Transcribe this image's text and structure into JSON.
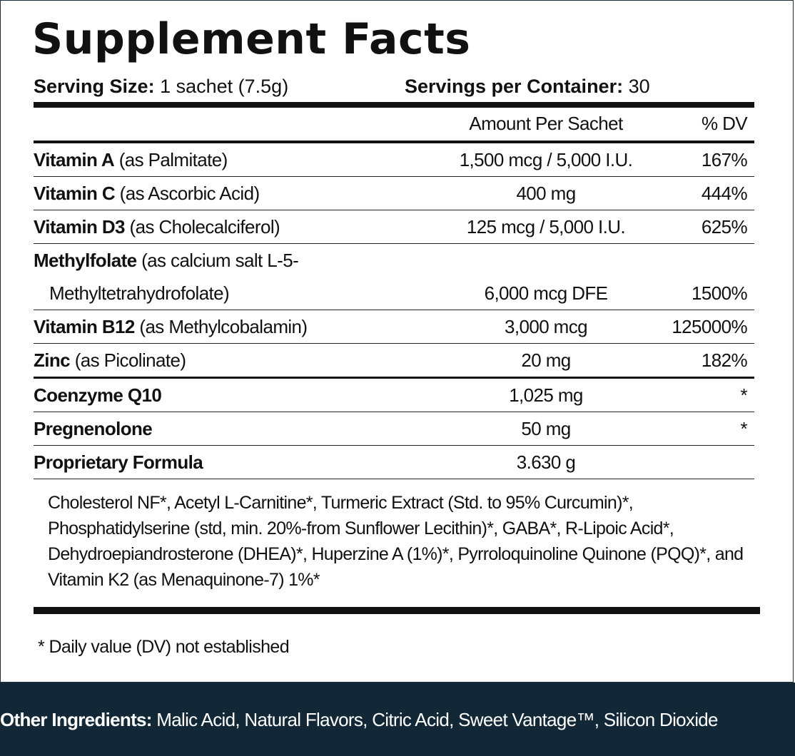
{
  "title": "Supplement Facts",
  "serving": {
    "size_label": "Serving Size:",
    "size_value": "1 sachet (7.5g)",
    "per_container_label": "Servings per Container:",
    "per_container_value": "30"
  },
  "table": {
    "amount_header": "Amount Per Sachet",
    "dv_header": "% DV",
    "rows": [
      {
        "name": "Vitamin A",
        "detail": "(as Palmitate)",
        "amount": "1,500 mcg / 5,000 I.U.",
        "dv": "167%"
      },
      {
        "name": "Vitamin C",
        "detail": "(as Ascorbic Acid)",
        "amount": "400 mg",
        "dv": "444%"
      },
      {
        "name": "Vitamin D3",
        "detail": "(as Cholecalciferol)",
        "amount": "125 mcg / 5,000 I.U.",
        "dv": "625%"
      },
      {
        "name": "Methylfolate",
        "detail": "(as calcium salt L-5-",
        "detail2": "Methyltetrahydrofolate)",
        "amount": "6,000 mcg DFE",
        "dv": "1500%"
      },
      {
        "name": "Vitamin B12",
        "detail": "(as Methylcobalamin)",
        "amount": "3,000 mcg",
        "dv": "125000%"
      },
      {
        "name": "Zinc",
        "detail": "(as Picolinate)",
        "amount": "20 mg",
        "dv": "182%"
      },
      {
        "name": "Coenzyme Q10",
        "detail": "",
        "amount": "1,025 mg",
        "dv": "*"
      },
      {
        "name": "Pregnenolone",
        "detail": "",
        "amount": "50 mg",
        "dv": "*"
      },
      {
        "name": "Proprietary Formula",
        "detail": "",
        "amount": "3.630 g",
        "dv": ""
      }
    ]
  },
  "proprietary_lines": [
    "Cholesterol NF*, Acetyl L-Carnitine*, Turmeric Extract (Std. to 95% Curcumin)*,",
    "Phosphatidylserine (std, min. 20%-from Sunflower Lecithin)*, GABA*, R-Lipoic Acid*,",
    "Dehydroepiandrosterone (DHEA)*, Huperzine A (1%)*,  Pyrroloquinoline Quinone (PQQ)*, and",
    "Vitamin K2 (as Menaquinone-7) 1%*"
  ],
  "footnote": "* Daily value (DV) not established",
  "other_ingredients": {
    "label": "Other Ingredients:",
    "value": "Malic Acid, Natural Flavors, Citric Acid, Sweet Vantage™, Silicon Dioxide"
  },
  "colors": {
    "banner": "#132836",
    "text": "#111111"
  }
}
